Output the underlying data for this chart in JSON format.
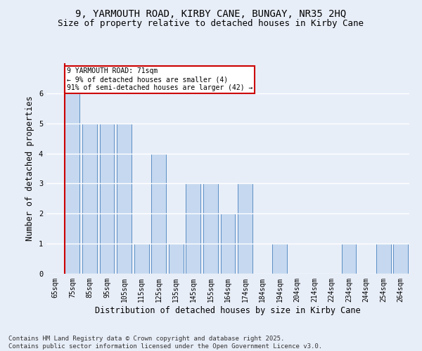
{
  "title1": "9, YARMOUTH ROAD, KIRBY CANE, BUNGAY, NR35 2HQ",
  "title2": "Size of property relative to detached houses in Kirby Cane",
  "xlabel": "Distribution of detached houses by size in Kirby Cane",
  "ylabel": "Number of detached properties",
  "categories": [
    "65sqm",
    "75sqm",
    "85sqm",
    "95sqm",
    "105sqm",
    "115sqm",
    "125sqm",
    "135sqm",
    "145sqm",
    "155sqm",
    "164sqm",
    "174sqm",
    "184sqm",
    "194sqm",
    "204sqm",
    "214sqm",
    "224sqm",
    "234sqm",
    "244sqm",
    "254sqm",
    "264sqm"
  ],
  "values": [
    0,
    6,
    5,
    5,
    5,
    1,
    4,
    1,
    3,
    3,
    2,
    3,
    0,
    1,
    0,
    0,
    0,
    1,
    0,
    1,
    1
  ],
  "bar_color": "#c5d8f0",
  "bar_edge_color": "#5b8ec4",
  "vline_color": "#cc0000",
  "vline_pos": 0.57,
  "annotation_text": "9 YARMOUTH ROAD: 71sqm\n← 9% of detached houses are smaller (4)\n91% of semi-detached houses are larger (42) →",
  "annotation_box_color": "#ffffff",
  "annotation_box_edge": "#cc0000",
  "ylim": [
    0,
    7
  ],
  "yticks": [
    0,
    1,
    2,
    3,
    4,
    5,
    6
  ],
  "footnote": "Contains HM Land Registry data © Crown copyright and database right 2025.\nContains public sector information licensed under the Open Government Licence v3.0.",
  "bg_color": "#e8eef8",
  "plot_bg_color": "#e8eef8",
  "grid_color": "#ffffff",
  "title_fontsize": 10,
  "subtitle_fontsize": 9,
  "tick_fontsize": 7,
  "label_fontsize": 8.5,
  "footnote_fontsize": 6.5,
  "annot_fontsize": 7
}
